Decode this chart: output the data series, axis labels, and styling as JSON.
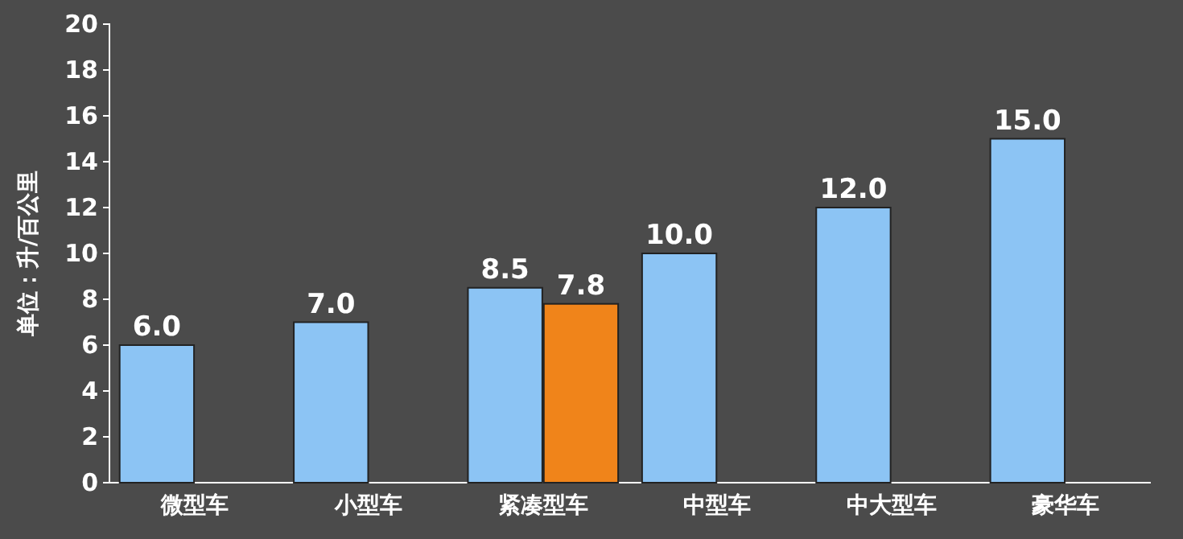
{
  "chart_data": {
    "type": "bar",
    "ylabel": "单位：升/百公里",
    "categories": [
      "微型车",
      "小型车",
      "紧凑型车",
      "中型车",
      "中大型车",
      "豪华车"
    ],
    "series": [
      {
        "color": "#8cc4f4",
        "values": [
          6.0,
          7.0,
          8.5,
          10.0,
          12.0,
          15.0
        ]
      },
      {
        "color": "#f0841a",
        "values": [
          null,
          null,
          7.8,
          null,
          null,
          null
        ]
      }
    ],
    "value_labels": [
      [
        "6.0",
        "7.0",
        "8.5",
        "10.0",
        "12.0",
        "15.0"
      ],
      [
        null,
        null,
        "7.8",
        null,
        null,
        null
      ]
    ],
    "ylim": [
      0,
      20
    ],
    "yticks": [
      0,
      2,
      4,
      6,
      8,
      10,
      12,
      14,
      16,
      18,
      20
    ],
    "grid": false
  }
}
